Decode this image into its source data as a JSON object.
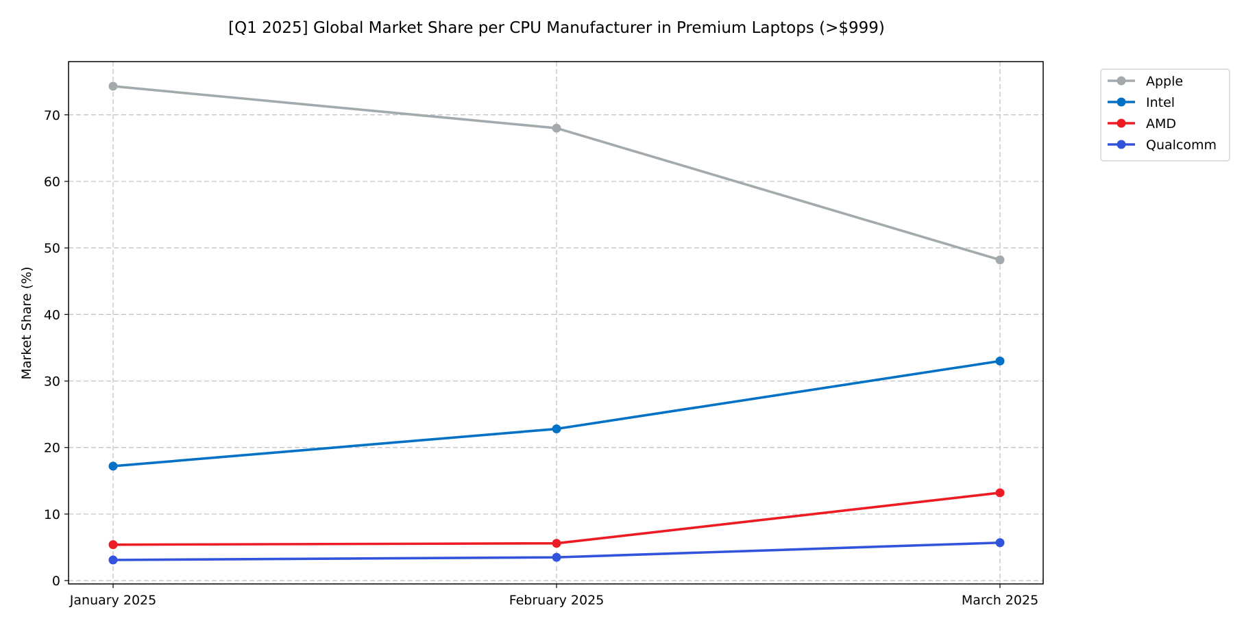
{
  "chart_data": {
    "type": "line",
    "title": "[Q1 2025] Global Market Share per CPU Manufacturer in Premium Laptops (>$999)",
    "xlabel": "",
    "ylabel": "Market Share (%)",
    "categories": [
      "January 2025",
      "February 2025",
      "March 2025"
    ],
    "ylim": [
      -0.5,
      78
    ],
    "yticks": [
      0,
      10,
      20,
      30,
      40,
      50,
      60,
      70
    ],
    "grid": true,
    "legend_position": "outside-top-right",
    "series": [
      {
        "name": "Apple",
        "color": "#A2AAAD",
        "values": [
          74.3,
          68.0,
          48.2
        ]
      },
      {
        "name": "Intel",
        "color": "#0071C5",
        "values": [
          17.2,
          22.8,
          33.0
        ]
      },
      {
        "name": "AMD",
        "color": "#ED1C24",
        "values": [
          5.4,
          5.6,
          13.2
        ]
      },
      {
        "name": "Qualcomm",
        "color": "#3253DC",
        "values": [
          3.1,
          3.5,
          5.7
        ]
      }
    ]
  }
}
